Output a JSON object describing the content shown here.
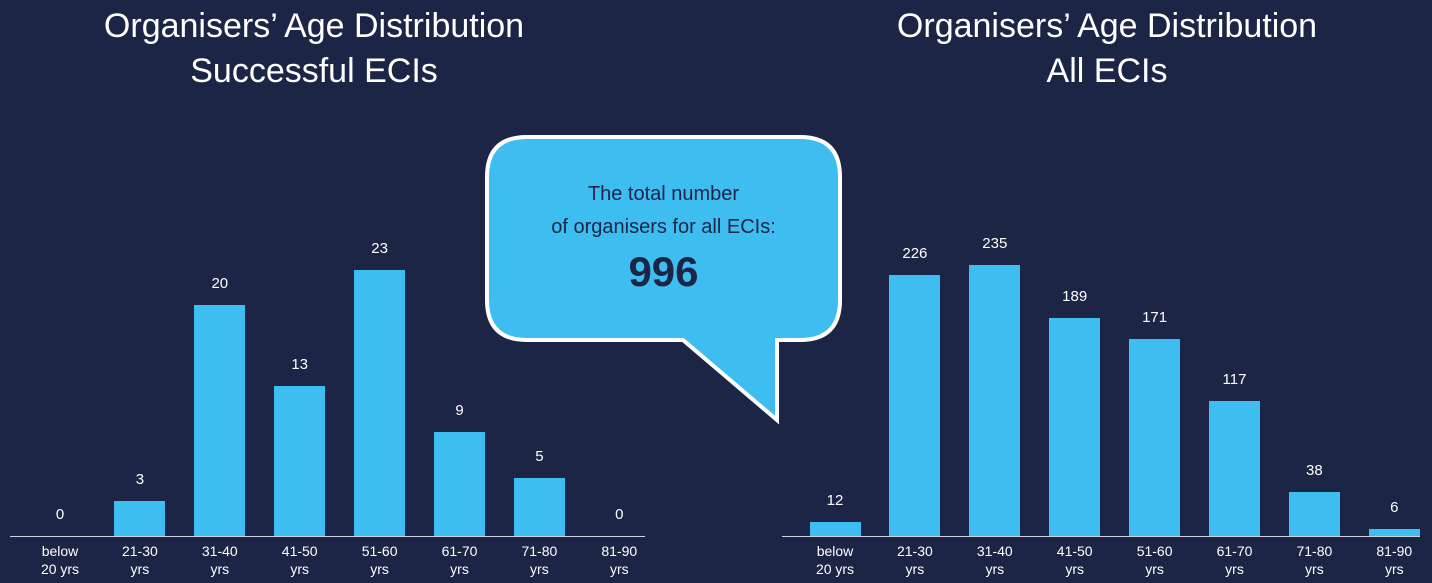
{
  "chart_data": [
    {
      "type": "bar",
      "title": "Organisers’ Age Distribution",
      "subtitle": "Successful ECIs",
      "categories": [
        "below 20 yrs",
        "21-30 yrs",
        "31-40 yrs",
        "41-50 yrs",
        "51-60 yrs",
        "61-70 yrs",
        "71-80 yrs",
        "81-90 yrs"
      ],
      "values": [
        0,
        3,
        20,
        13,
        23,
        9,
        5,
        0
      ],
      "color": "#3dbdf0"
    },
    {
      "type": "bar",
      "title": "Organisers’ Age Distribution",
      "subtitle": "All ECIs",
      "categories": [
        "below 20 yrs",
        "21-30 yrs",
        "31-40 yrs",
        "41-50 yrs",
        "51-60 yrs",
        "61-70 yrs",
        "71-80 yrs",
        "81-90 yrs"
      ],
      "values": [
        12,
        226,
        235,
        189,
        171,
        117,
        38,
        6
      ],
      "color": "#3dbdf0"
    }
  ],
  "callout": {
    "lines": [
      "The total number",
      "of organisers for all ECIs:"
    ],
    "total": "996"
  }
}
